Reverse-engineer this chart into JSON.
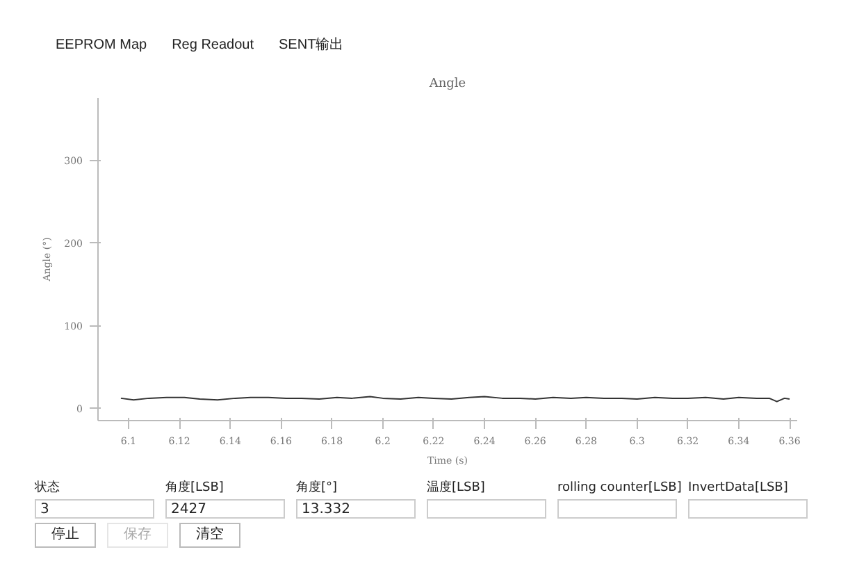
{
  "chart_data": {
    "type": "line",
    "title": "Angle",
    "xlabel": "Time (s)",
    "ylabel": "Angle (°)",
    "x": [
      6.097,
      6.102,
      6.108,
      6.115,
      6.122,
      6.128,
      6.135,
      6.142,
      6.148,
      6.155,
      6.162,
      6.168,
      6.175,
      6.182,
      6.188,
      6.195,
      6.2,
      6.207,
      6.214,
      6.22,
      6.227,
      6.234,
      6.24,
      6.247,
      6.254,
      6.26,
      6.267,
      6.274,
      6.28,
      6.287,
      6.294,
      6.3,
      6.307,
      6.314,
      6.32,
      6.327,
      6.334,
      6.34,
      6.347,
      6.352,
      6.355,
      6.358,
      6.36
    ],
    "series": [
      {
        "color": "#333333",
        "values": [
          12,
          10,
          12,
          13,
          13,
          11,
          10,
          12,
          13,
          13,
          12,
          12,
          11,
          13,
          12,
          14,
          12,
          11,
          13,
          12,
          11,
          13,
          14,
          12,
          12,
          11,
          13,
          12,
          13,
          12,
          12,
          11,
          13,
          12,
          12,
          13,
          11,
          13,
          12,
          12,
          8,
          12,
          11
        ]
      }
    ],
    "xlim": [
      6.088,
      6.363
    ],
    "ylim": [
      -15,
      375
    ],
    "xticks": [
      {
        "value": 6.1,
        "label": "6.1"
      },
      6.12,
      6.14,
      6.16,
      6.18,
      {
        "value": 6.2,
        "label": "6.2"
      },
      6.22,
      6.24,
      6.26,
      6.28,
      {
        "value": 6.3,
        "label": "6.3"
      },
      6.32,
      6.34,
      6.36
    ],
    "yticks": [
      0,
      100,
      200,
      300
    ],
    "annotations": [
      "EEPROM Map",
      "Reg Readout",
      "SENT输出",
      "状态",
      "角度[LSB]",
      "角度[°]",
      "温度[LSB]",
      "rolling counter[LSB]",
      "InvertData[LSB]",
      "3",
      "2427",
      "13.332",
      "停止",
      "保存",
      "清空"
    ]
  }
}
